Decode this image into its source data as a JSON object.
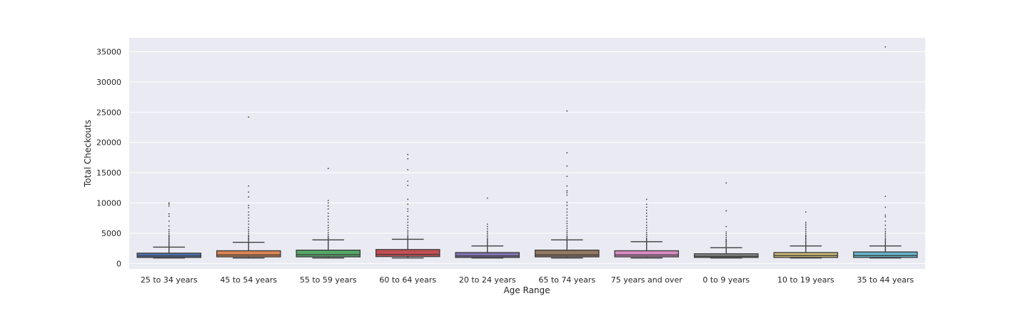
{
  "chart_data": {
    "type": "box",
    "title": "",
    "xlabel": "Age Range",
    "ylabel": "Total Checkouts",
    "ylim": [
      -900,
      37300
    ],
    "yticks": [
      0,
      5000,
      10000,
      15000,
      20000,
      25000,
      30000,
      35000
    ],
    "grid": true,
    "background": "#eaeaf2",
    "categories": [
      "25 to 34 years",
      "45 to 54 years",
      "55 to 59 years",
      "60 to 64 years",
      "20 to 24 years",
      "65 to 74 years",
      "75 years and over",
      "0 to 9 years",
      "10 to 19 years",
      "35 to 44 years"
    ],
    "colors": [
      "#4c72b0",
      "#dd8452",
      "#55a868",
      "#c44e52",
      "#8172b3",
      "#937860",
      "#da8bc3",
      "#8c8c8c",
      "#ccb974",
      "#64b5cd"
    ],
    "boxes": [
      {
        "whislo": 900,
        "q1": 1000,
        "med": 1250,
        "q3": 1700,
        "whishi": 2700,
        "fliers": [
          2900,
          3100,
          3300,
          3500,
          3700,
          3900,
          4100,
          4300,
          4500,
          4700,
          5000,
          5300,
          5600,
          6200,
          7000,
          7800,
          8200,
          9500,
          9800,
          10000
        ]
      },
      {
        "whislo": 900,
        "q1": 1100,
        "med": 1400,
        "q3": 2100,
        "whishi": 3500,
        "fliers": [
          3700,
          3900,
          4100,
          4300,
          4500,
          4700,
          5000,
          5300,
          5600,
          6000,
          6500,
          7000,
          7500,
          8000,
          8500,
          9200,
          9600,
          11000,
          11800,
          12800,
          24200
        ]
      },
      {
        "whislo": 900,
        "q1": 1100,
        "med": 1450,
        "q3": 2200,
        "whishi": 3900,
        "fliers": [
          4100,
          4300,
          4500,
          4800,
          5100,
          5500,
          5900,
          6300,
          6800,
          7300,
          7800,
          8300,
          9000,
          9500,
          10000,
          10400,
          15700
        ]
      },
      {
        "whislo": 900,
        "q1": 1150,
        "med": 1500,
        "q3": 2300,
        "whishi": 4000,
        "fliers": [
          4200,
          4400,
          4600,
          4900,
          5200,
          5500,
          5900,
          6300,
          6800,
          7300,
          7800,
          8600,
          9000,
          9800,
          10600,
          12900,
          13600,
          15500,
          17300,
          18000
        ]
      },
      {
        "whislo": 900,
        "q1": 1000,
        "med": 1250,
        "q3": 1800,
        "whishi": 2900,
        "fliers": [
          3100,
          3300,
          3500,
          3700,
          3900,
          4100,
          4400,
          4700,
          5000,
          5300,
          5700,
          6100,
          6500,
          10800
        ]
      },
      {
        "whislo": 900,
        "q1": 1100,
        "med": 1400,
        "q3": 2200,
        "whishi": 3900,
        "fliers": [
          4100,
          4300,
          4500,
          4800,
          5100,
          5400,
          5800,
          6200,
          6600,
          7000,
          7500,
          8000,
          8500,
          9000,
          9600,
          10100,
          11300,
          11700,
          12000,
          12800,
          14400,
          16100,
          18300,
          25200
        ]
      },
      {
        "whislo": 900,
        "q1": 1100,
        "med": 1400,
        "q3": 2100,
        "whishi": 3600,
        "fliers": [
          3800,
          4000,
          4200,
          4500,
          4800,
          5100,
          5500,
          5900,
          6300,
          6800,
          7300,
          7800,
          8300,
          8800,
          9300,
          9800,
          10600
        ]
      },
      {
        "whislo": 900,
        "q1": 1000,
        "med": 1200,
        "q3": 1600,
        "whishi": 2600,
        "fliers": [
          2800,
          3000,
          3200,
          3400,
          3600,
          3800,
          4000,
          4300,
          4600,
          4900,
          5200,
          6100,
          8700,
          13300
        ]
      },
      {
        "whislo": 900,
        "q1": 1000,
        "med": 1300,
        "q3": 1800,
        "whishi": 2900,
        "fliers": [
          3100,
          3300,
          3500,
          3700,
          3900,
          4100,
          4300,
          4500,
          4700,
          5000,
          5300,
          5600,
          5900,
          6200,
          6500,
          6800,
          8500
        ]
      },
      {
        "whislo": 900,
        "q1": 1000,
        "med": 1300,
        "q3": 1900,
        "whishi": 2900,
        "fliers": [
          3100,
          3300,
          3500,
          3700,
          3900,
          4100,
          4400,
          4700,
          5000,
          5300,
          5700,
          6300,
          7000,
          7700,
          8000,
          9300,
          11100,
          35800
        ]
      }
    ]
  }
}
